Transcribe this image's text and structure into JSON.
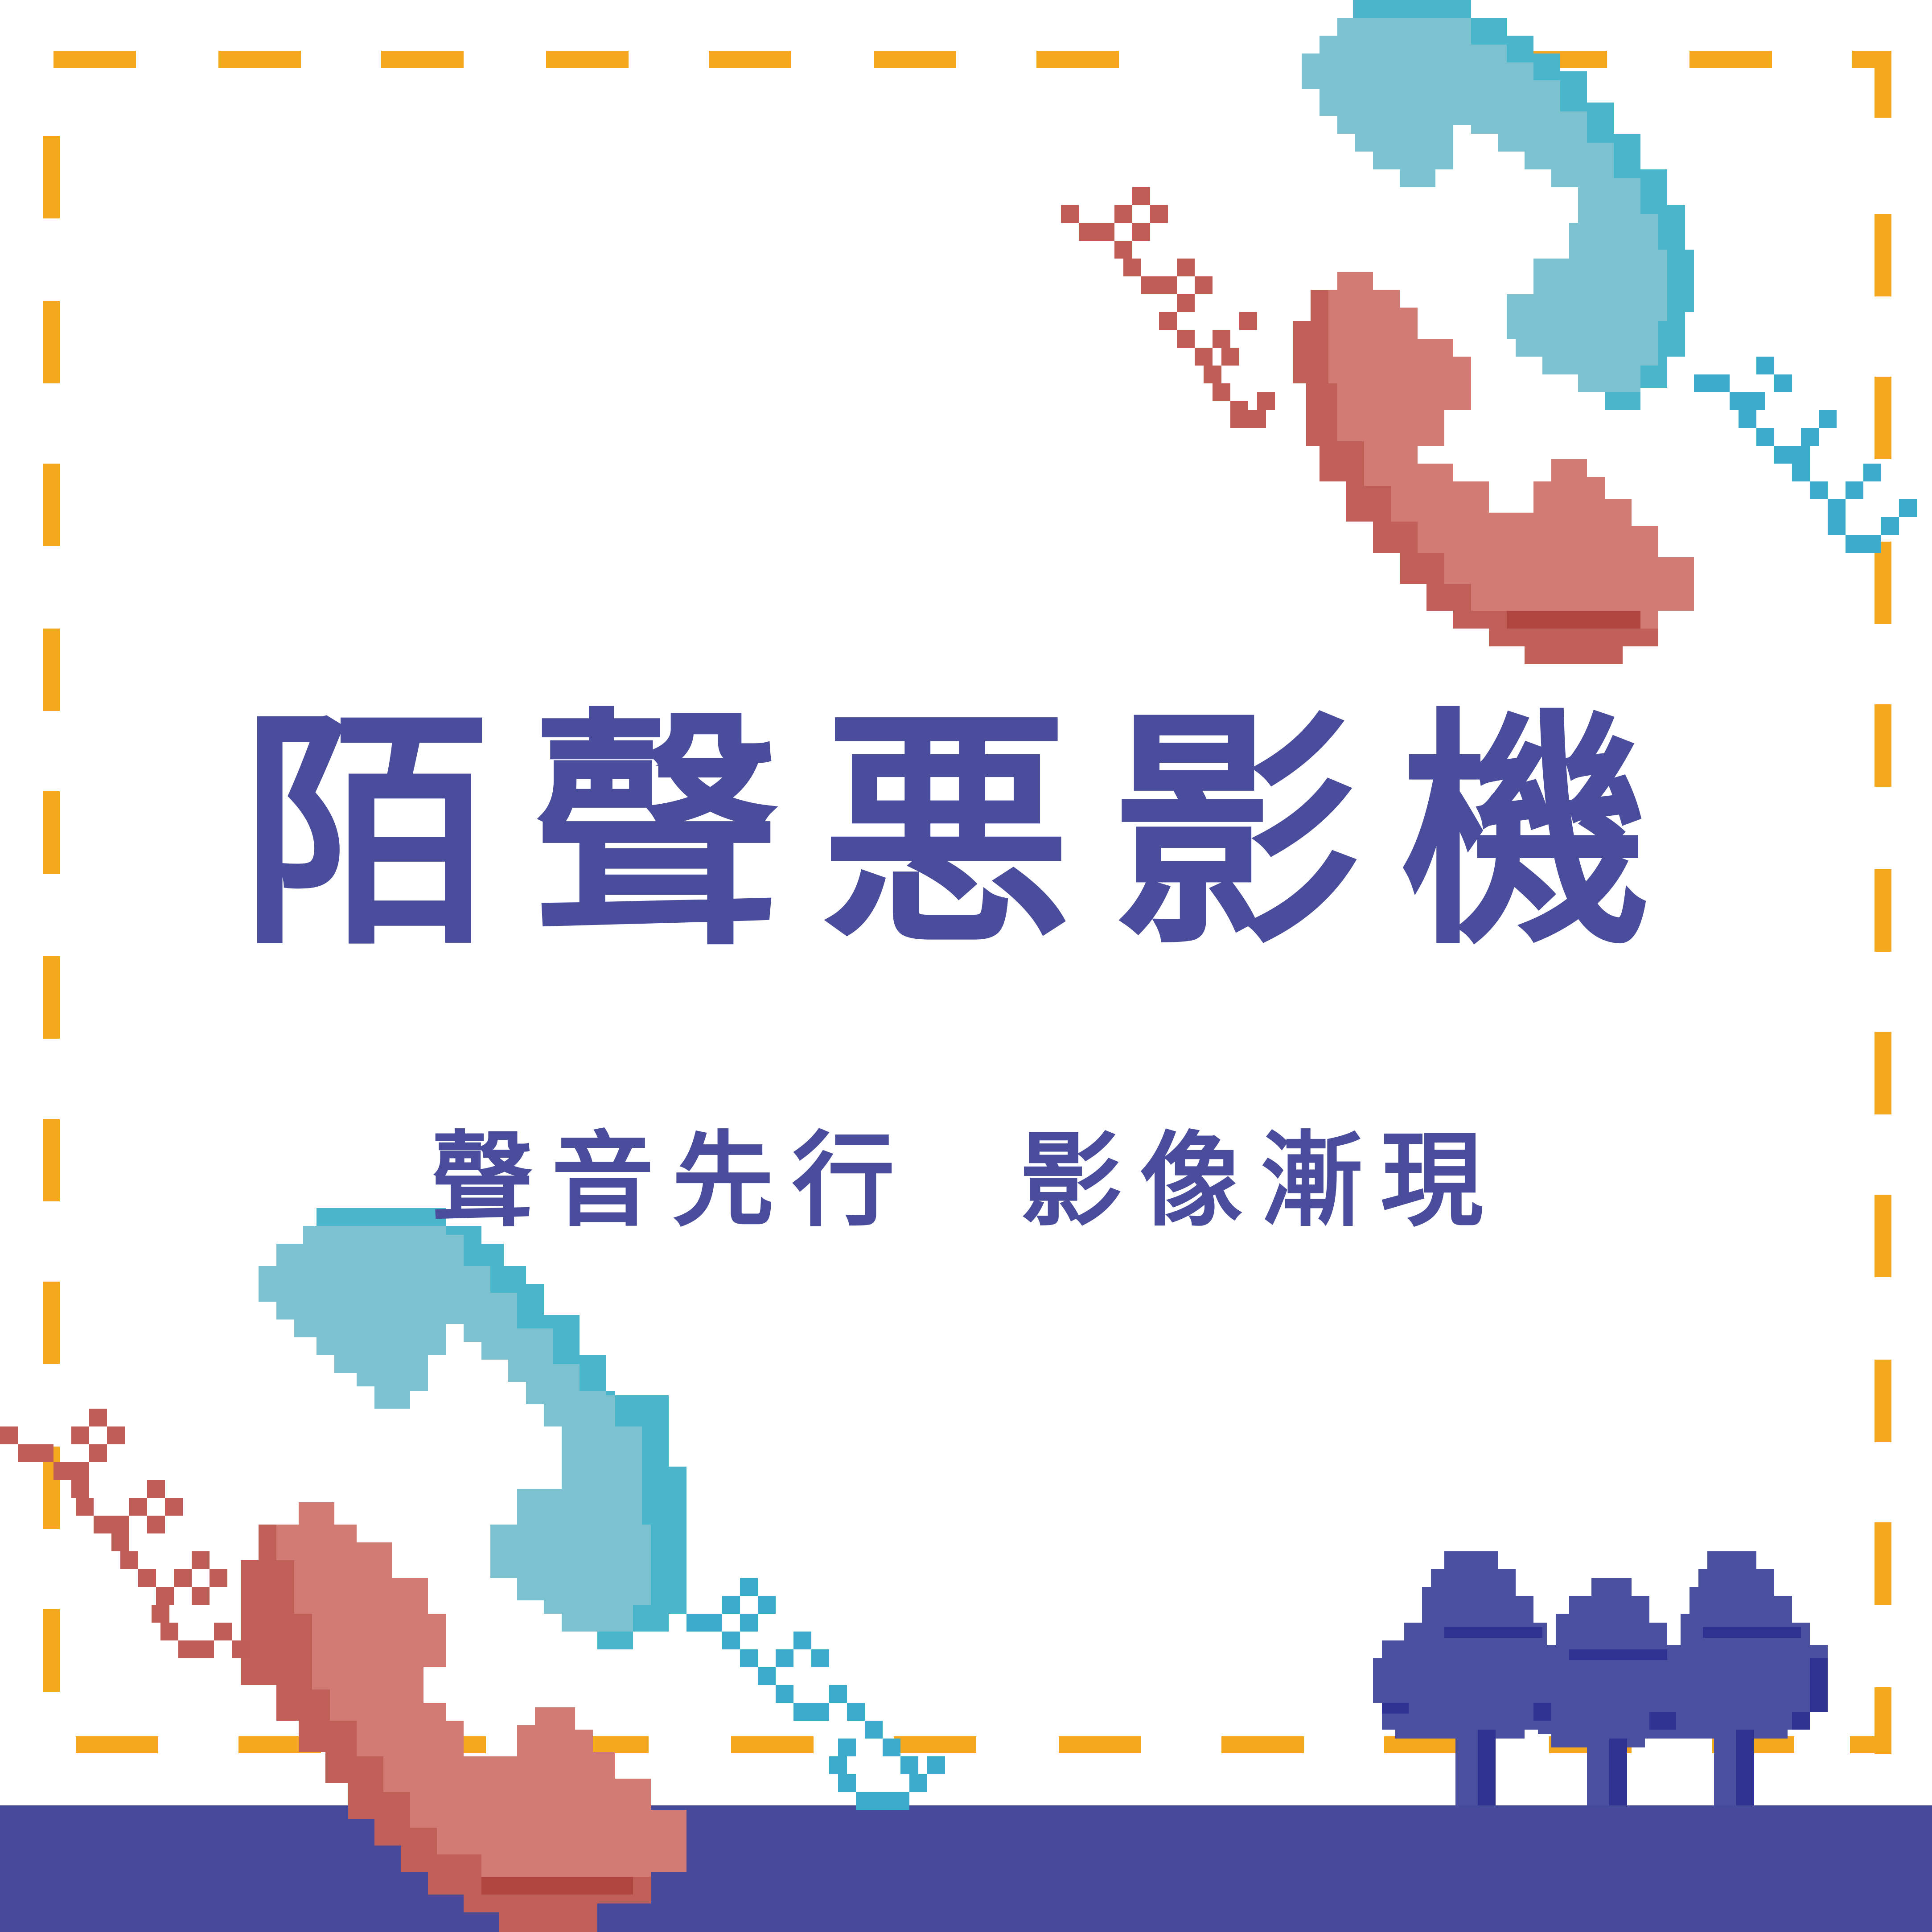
{
  "poster": {
    "title": "陌聲悪影機",
    "subtitle": "聲音先行  影像漸現"
  },
  "colors": {
    "border_dash": "#f5a71d",
    "title_text": "#4a4c9c",
    "ground": "#474a9a",
    "handset_blue_light": "#7cc1cf",
    "handset_blue_dark": "#4ab6cc",
    "handset_red_light": "#d17b74",
    "handset_red_dark": "#bf5f58",
    "tree": "#4b4fa0",
    "tree_dark": "#2f3290"
  },
  "icons": {
    "top_handset_blue": "telephone-handset-icon",
    "top_handset_red": "telephone-handset-icon",
    "bottom_handset_blue": "telephone-handset-icon",
    "bottom_handset_red": "telephone-handset-icon",
    "trees": "pixel-tree-icon"
  }
}
